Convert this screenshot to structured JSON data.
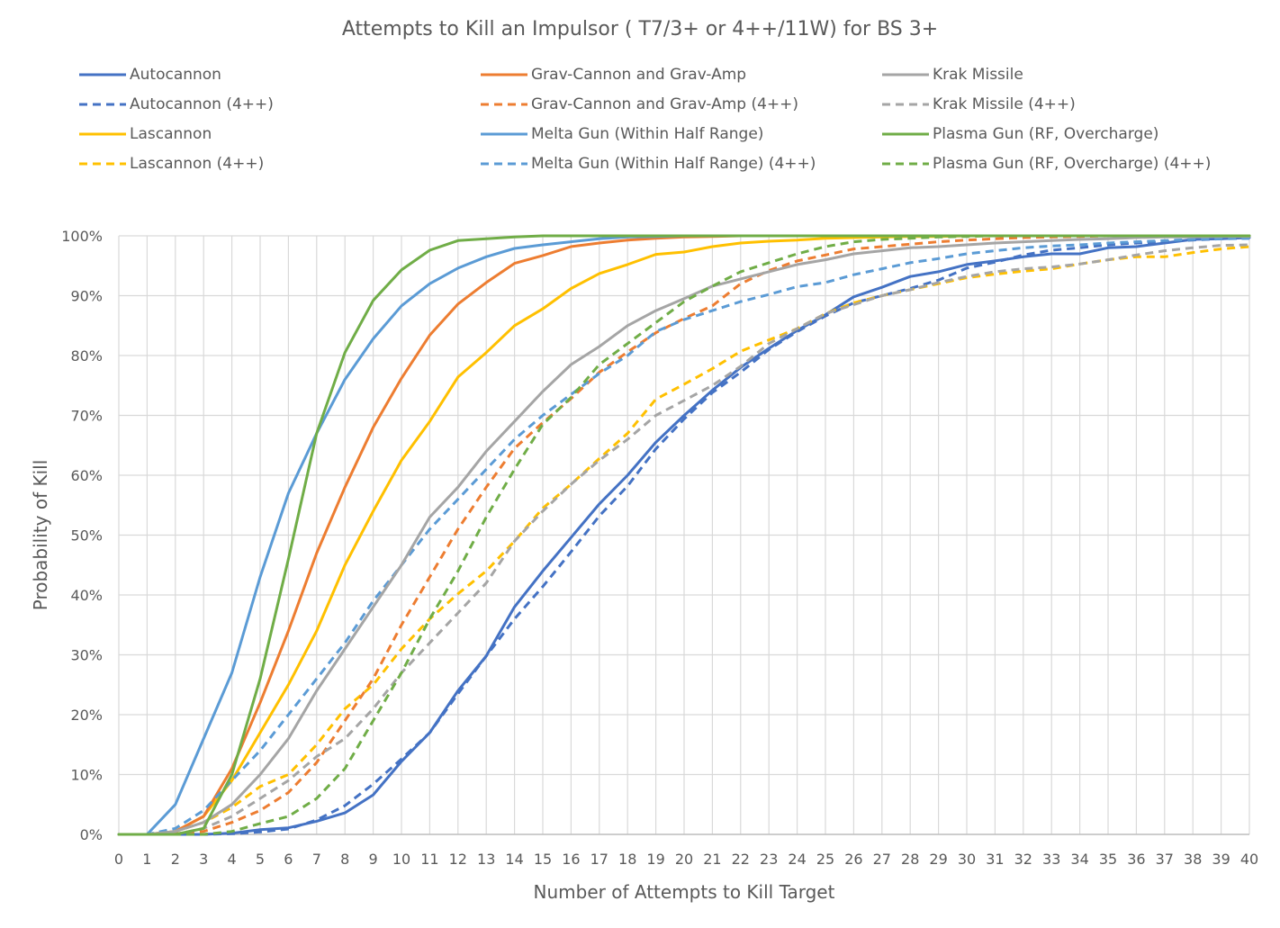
{
  "chart_data": {
    "type": "line",
    "title": "Attempts to Kill an Impulsor ( T7/3+ or 4++/11W) for BS 3+",
    "xlabel": "Number of Attempts to Kill Target",
    "ylabel": "Probability of Kill",
    "xlim": [
      0,
      40
    ],
    "ylim": [
      0,
      1
    ],
    "x_ticks": [
      "0",
      "1",
      "2",
      "3",
      "4",
      "5",
      "6",
      "7",
      "8",
      "9",
      "10",
      "11",
      "12",
      "13",
      "14",
      "15",
      "16",
      "17",
      "18",
      "19",
      "20",
      "21",
      "22",
      "23",
      "24",
      "25",
      "26",
      "27",
      "28",
      "29",
      "30",
      "31",
      "32",
      "33",
      "34",
      "35",
      "36",
      "37",
      "38",
      "39",
      "40"
    ],
    "y_ticks": [
      {
        "value": 0,
        "label": "0%"
      },
      {
        "value": 0.1,
        "label": "10%"
      },
      {
        "value": 0.2,
        "label": "20%"
      },
      {
        "value": 0.3,
        "label": "30%"
      },
      {
        "value": 0.4,
        "label": "40%"
      },
      {
        "value": 0.5,
        "label": "50%"
      },
      {
        "value": 0.6,
        "label": "60%"
      },
      {
        "value": 0.7,
        "label": "70%"
      },
      {
        "value": 0.8,
        "label": "80%"
      },
      {
        "value": 0.9,
        "label": "90%"
      },
      {
        "value": 1.0,
        "label": "100%"
      }
    ],
    "grid": true,
    "legend_position": "top",
    "series": [
      {
        "name": "Autocannon",
        "color": "#4472C4",
        "dash": "solid",
        "values": [
          0,
          0,
          0,
          0,
          0.002,
          0.008,
          0.011,
          0.022,
          0.036,
          0.066,
          0.122,
          0.17,
          0.24,
          0.298,
          0.38,
          0.44,
          0.496,
          0.552,
          0.6,
          0.655,
          0.7,
          0.742,
          0.78,
          0.812,
          0.842,
          0.868,
          0.898,
          0.914,
          0.932,
          0.94,
          0.952,
          0.958,
          0.965,
          0.97,
          0.97,
          0.98,
          0.982,
          0.988,
          0.994,
          0.995,
          0.997
        ]
      },
      {
        "name": "Autocannon (4++)",
        "color": "#4472C4",
        "dash": "dashed",
        "values": [
          0,
          0,
          0,
          0,
          0.001,
          0.004,
          0.009,
          0.024,
          0.048,
          0.084,
          0.126,
          0.17,
          0.235,
          0.298,
          0.36,
          0.414,
          0.472,
          0.532,
          0.582,
          0.644,
          0.694,
          0.738,
          0.772,
          0.81,
          0.84,
          0.866,
          0.888,
          0.9,
          0.912,
          0.926,
          0.946,
          0.956,
          0.968,
          0.976,
          0.98,
          0.985,
          0.988,
          0.99,
          0.993,
          0.995,
          0.996
        ]
      },
      {
        "name": "Lascannon",
        "color": "#FFC000",
        "dash": "solid",
        "values": [
          0,
          0,
          0.005,
          0.03,
          0.09,
          0.17,
          0.25,
          0.34,
          0.45,
          0.54,
          0.625,
          0.69,
          0.764,
          0.805,
          0.85,
          0.878,
          0.912,
          0.937,
          0.952,
          0.969,
          0.973,
          0.982,
          0.988,
          0.991,
          0.993,
          0.996,
          0.997,
          0.998,
          0.999,
          0.999,
          1,
          1,
          1,
          1,
          1,
          1,
          1,
          1,
          1,
          1,
          1
        ]
      },
      {
        "name": "Lascannon (4++)",
        "color": "#FFC000",
        "dash": "dashed",
        "values": [
          0,
          0,
          0.005,
          0.02,
          0.045,
          0.08,
          0.1,
          0.15,
          0.21,
          0.25,
          0.31,
          0.36,
          0.402,
          0.44,
          0.49,
          0.545,
          0.585,
          0.628,
          0.67,
          0.727,
          0.752,
          0.778,
          0.807,
          0.826,
          0.845,
          0.87,
          0.888,
          0.9,
          0.91,
          0.92,
          0.93,
          0.936,
          0.941,
          0.945,
          0.953,
          0.96,
          0.965,
          0.965,
          0.972,
          0.978,
          0.982
        ]
      },
      {
        "name": "Grav-Cannon and Grav-Amp",
        "color": "#ED7D31",
        "dash": "solid",
        "values": [
          0,
          0,
          0.005,
          0.03,
          0.11,
          0.22,
          0.34,
          0.47,
          0.58,
          0.68,
          0.762,
          0.834,
          0.886,
          0.922,
          0.954,
          0.967,
          0.982,
          0.988,
          0.993,
          0.996,
          0.998,
          0.999,
          1,
          1,
          1,
          1,
          1,
          1,
          1,
          1,
          1,
          1,
          1,
          1,
          1,
          1,
          1,
          1,
          1,
          1,
          1
        ]
      },
      {
        "name": "Grav-Cannon and Grav-Amp (4++)",
        "color": "#ED7D31",
        "dash": "dashed",
        "values": [
          0,
          0,
          0.001,
          0.005,
          0.02,
          0.04,
          0.07,
          0.12,
          0.19,
          0.26,
          0.35,
          0.43,
          0.51,
          0.58,
          0.645,
          0.688,
          0.728,
          0.772,
          0.806,
          0.838,
          0.862,
          0.883,
          0.92,
          0.942,
          0.958,
          0.968,
          0.978,
          0.982,
          0.986,
          0.99,
          0.993,
          0.995,
          0.997,
          0.998,
          0.999,
          1,
          1,
          1,
          1,
          1,
          1
        ]
      },
      {
        "name": "Melta Gun (Within Half Range)",
        "color": "#5B9BD5",
        "dash": "solid",
        "values": [
          0,
          0,
          0.05,
          0.16,
          0.27,
          0.43,
          0.57,
          0.67,
          0.76,
          0.828,
          0.883,
          0.92,
          0.946,
          0.965,
          0.979,
          0.985,
          0.99,
          0.995,
          0.998,
          0.999,
          1,
          1,
          1,
          1,
          1,
          1,
          1,
          1,
          1,
          1,
          1,
          1,
          1,
          1,
          1,
          1,
          1,
          1,
          1,
          1,
          1
        ]
      },
      {
        "name": "Melta Gun (Within Half Range) (4++)",
        "color": "#5B9BD5",
        "dash": "dashed",
        "values": [
          0,
          0,
          0.01,
          0.04,
          0.09,
          0.14,
          0.2,
          0.26,
          0.32,
          0.39,
          0.45,
          0.51,
          0.56,
          0.61,
          0.66,
          0.7,
          0.735,
          0.77,
          0.8,
          0.84,
          0.86,
          0.875,
          0.89,
          0.902,
          0.915,
          0.922,
          0.935,
          0.945,
          0.955,
          0.962,
          0.97,
          0.975,
          0.98,
          0.983,
          0.985,
          0.988,
          0.99,
          0.992,
          0.994,
          0.995,
          0.996
        ]
      },
      {
        "name": "Krak Missile",
        "color": "#A5A5A5",
        "dash": "solid",
        "values": [
          0,
          0,
          0.005,
          0.02,
          0.05,
          0.1,
          0.16,
          0.24,
          0.31,
          0.38,
          0.45,
          0.53,
          0.58,
          0.64,
          0.69,
          0.74,
          0.785,
          0.815,
          0.85,
          0.875,
          0.895,
          0.916,
          0.928,
          0.94,
          0.952,
          0.96,
          0.97,
          0.975,
          0.98,
          0.982,
          0.985,
          0.988,
          0.99,
          0.992,
          0.994,
          0.995,
          0.997,
          0.998,
          0.998,
          0.999,
          0.999
        ]
      },
      {
        "name": "Krak Missile (4++)",
        "color": "#A5A5A5",
        "dash": "dashed",
        "values": [
          0,
          0,
          0,
          0.01,
          0.03,
          0.06,
          0.09,
          0.13,
          0.16,
          0.21,
          0.27,
          0.32,
          0.37,
          0.42,
          0.49,
          0.54,
          0.585,
          0.625,
          0.66,
          0.7,
          0.725,
          0.75,
          0.782,
          0.82,
          0.845,
          0.87,
          0.885,
          0.9,
          0.91,
          0.922,
          0.932,
          0.94,
          0.945,
          0.948,
          0.953,
          0.96,
          0.968,
          0.975,
          0.98,
          0.984,
          0.985
        ]
      },
      {
        "name": "Plasma Gun (RF, Overcharge)",
        "color": "#70AD47",
        "dash": "solid",
        "values": [
          0,
          0,
          0,
          0.01,
          0.1,
          0.26,
          0.46,
          0.67,
          0.805,
          0.892,
          0.943,
          0.976,
          0.992,
          0.995,
          0.998,
          1,
          1,
          1,
          1,
          1,
          1,
          1,
          1,
          1,
          1,
          1,
          1,
          1,
          1,
          1,
          1,
          1,
          1,
          1,
          1,
          1,
          1,
          1,
          1,
          1,
          1
        ]
      },
      {
        "name": "Plasma Gun (RF, Overcharge) (4++)",
        "color": "#70AD47",
        "dash": "dashed",
        "values": [
          0,
          0,
          0,
          0,
          0.005,
          0.018,
          0.03,
          0.06,
          0.11,
          0.19,
          0.27,
          0.36,
          0.44,
          0.53,
          0.61,
          0.685,
          0.73,
          0.785,
          0.82,
          0.855,
          0.89,
          0.916,
          0.94,
          0.955,
          0.97,
          0.982,
          0.99,
          0.994,
          0.996,
          0.998,
          0.999,
          1,
          1,
          1,
          1,
          1,
          1,
          1,
          1,
          1,
          1
        ]
      }
    ],
    "legend_order": [
      "Autocannon",
      "Grav-Cannon and Grav-Amp",
      "Krak Missile",
      "Autocannon (4++)",
      "Grav-Cannon and Grav-Amp (4++)",
      "Krak Missile (4++)",
      "Lascannon",
      "Melta Gun (Within Half Range)",
      "Plasma Gun (RF, Overcharge)",
      "Lascannon (4++)",
      "Melta Gun (Within Half Range) (4++)",
      "Plasma Gun (RF, Overcharge) (4++)"
    ]
  }
}
